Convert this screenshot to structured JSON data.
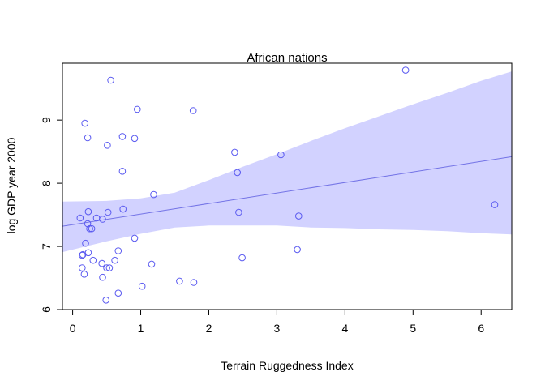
{
  "chart_data": {
    "type": "scatter",
    "title": "African nations",
    "xlabel": "Terrain Ruggedness Index",
    "ylabel": "log GDP year 2000",
    "xlim": [
      -0.15,
      6.45
    ],
    "ylim": [
      6.0,
      9.9
    ],
    "xticks": [
      0,
      1,
      2,
      3,
      4,
      5,
      6
    ],
    "yticks": [
      6,
      7,
      8,
      9
    ],
    "grid": false,
    "colors": {
      "points": "#5a5af0",
      "line": "#7373e6",
      "band": "#d2d2ff",
      "axis": "#000000"
    },
    "points": [
      {
        "x": 0.56,
        "y": 9.63
      },
      {
        "x": 4.89,
        "y": 9.79
      },
      {
        "x": 0.95,
        "y": 9.17
      },
      {
        "x": 1.77,
        "y": 9.15
      },
      {
        "x": 0.18,
        "y": 8.95
      },
      {
        "x": 0.22,
        "y": 8.72
      },
      {
        "x": 0.73,
        "y": 8.74
      },
      {
        "x": 0.91,
        "y": 8.71
      },
      {
        "x": 0.51,
        "y": 8.6
      },
      {
        "x": 2.38,
        "y": 8.49
      },
      {
        "x": 3.06,
        "y": 8.45
      },
      {
        "x": 0.73,
        "y": 8.19
      },
      {
        "x": 2.42,
        "y": 8.17
      },
      {
        "x": 1.19,
        "y": 7.82
      },
      {
        "x": 6.2,
        "y": 7.66
      },
      {
        "x": 0.74,
        "y": 7.59
      },
      {
        "x": 0.23,
        "y": 7.55
      },
      {
        "x": 0.52,
        "y": 7.54
      },
      {
        "x": 2.44,
        "y": 7.54
      },
      {
        "x": 3.32,
        "y": 7.48
      },
      {
        "x": 0.11,
        "y": 7.45
      },
      {
        "x": 0.35,
        "y": 7.45
      },
      {
        "x": 0.44,
        "y": 7.43
      },
      {
        "x": 0.22,
        "y": 7.36
      },
      {
        "x": 0.25,
        "y": 7.28
      },
      {
        "x": 0.28,
        "y": 7.28
      },
      {
        "x": 0.91,
        "y": 7.13
      },
      {
        "x": 0.19,
        "y": 7.05
      },
      {
        "x": 3.3,
        "y": 6.95
      },
      {
        "x": 0.67,
        "y": 6.93
      },
      {
        "x": 0.23,
        "y": 6.9
      },
      {
        "x": 0.15,
        "y": 6.87
      },
      {
        "x": 0.14,
        "y": 6.86
      },
      {
        "x": 2.49,
        "y": 6.82
      },
      {
        "x": 0.3,
        "y": 6.78
      },
      {
        "x": 0.62,
        "y": 6.78
      },
      {
        "x": 0.43,
        "y": 6.73
      },
      {
        "x": 1.16,
        "y": 6.72
      },
      {
        "x": 0.14,
        "y": 6.66
      },
      {
        "x": 0.5,
        "y": 6.66
      },
      {
        "x": 0.54,
        "y": 6.66
      },
      {
        "x": 0.17,
        "y": 6.56
      },
      {
        "x": 0.44,
        "y": 6.51
      },
      {
        "x": 1.57,
        "y": 6.45
      },
      {
        "x": 1.78,
        "y": 6.43
      },
      {
        "x": 1.02,
        "y": 6.37
      },
      {
        "x": 0.67,
        "y": 6.26
      },
      {
        "x": 0.49,
        "y": 6.15
      }
    ],
    "regression": {
      "x": [
        -0.15,
        6.45
      ],
      "y": [
        7.32,
        8.42
      ]
    },
    "interval": {
      "x": [
        -0.15,
        0.5,
        1.0,
        1.5,
        2.0,
        2.5,
        3.0,
        3.5,
        4.0,
        4.5,
        5.0,
        5.5,
        6.0,
        6.45
      ],
      "upper": [
        7.71,
        7.72,
        7.76,
        7.85,
        8.05,
        8.26,
        8.46,
        8.67,
        8.87,
        9.06,
        9.25,
        9.43,
        9.62,
        9.77
      ],
      "lower": [
        6.91,
        7.08,
        7.2,
        7.3,
        7.33,
        7.33,
        7.33,
        7.3,
        7.29,
        7.27,
        7.26,
        7.24,
        7.21,
        7.19
      ]
    }
  }
}
